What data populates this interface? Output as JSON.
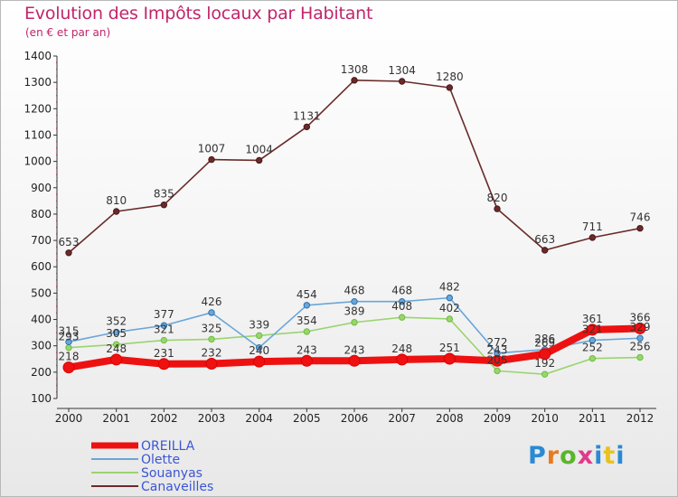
{
  "header": {
    "title": "Evolution des Impôts locaux par Habitant",
    "subtitle": "(en € et par an)"
  },
  "logo": {
    "text": "Proxiti",
    "colors": [
      "#2a8ad4",
      "#e87a1e",
      "#5ab52a",
      "#e03a8a",
      "#2a8ad4",
      "#e8c21e",
      "#2a8ad4"
    ]
  },
  "chart_data": {
    "type": "line",
    "title": "Evolution des Impôts locaux par Habitant",
    "subtitle": "(en € et par an)",
    "x": [
      "2000",
      "2001",
      "2002",
      "2003",
      "2004",
      "2005",
      "2006",
      "2007",
      "2008",
      "2009",
      "2010",
      "2011",
      "2012"
    ],
    "ylim": [
      100,
      1400
    ],
    "yticks": [
      100,
      200,
      300,
      400,
      500,
      600,
      700,
      800,
      900,
      1000,
      1100,
      1200,
      1300,
      1400
    ],
    "grid": false,
    "legend_position": "bottom-left",
    "series": [
      {
        "name": "OREILLA",
        "color": "#ee1111",
        "values": [
          218,
          248,
          231,
          232,
          240,
          243,
          243,
          248,
          251,
          243,
          269,
          361,
          366
        ],
        "labels": [
          "218",
          "248",
          "231",
          "232",
          "240",
          "243",
          "243",
          "248",
          "251",
          "243",
          "269",
          "361",
          "366"
        ]
      },
      {
        "name": "Olette",
        "color": "#6aa6d8",
        "values": [
          315,
          352,
          377,
          426,
          293,
          454,
          468,
          468,
          482,
          272,
          286,
          321,
          329
        ],
        "labels": [
          "315",
          "352",
          "377",
          "426",
          "",
          "454",
          "468",
          "468",
          "482",
          "272",
          "286",
          "321",
          "329"
        ]
      },
      {
        "name": "Souanyas",
        "color": "#9ad470",
        "values": [
          293,
          305,
          321,
          325,
          339,
          354,
          389,
          408,
          402,
          205,
          192,
          252,
          256
        ],
        "labels": [
          "293",
          "305",
          "321",
          "325",
          "339",
          "354",
          "389",
          "408",
          "402",
          "205",
          "192",
          "252",
          "256"
        ]
      },
      {
        "name": "Canaveilles",
        "color": "#6b2a2a",
        "values": [
          653,
          810,
          835,
          1007,
          1004,
          1131,
          1308,
          1304,
          1280,
          820,
          663,
          711,
          746
        ],
        "labels": [
          "653",
          "810",
          "835",
          "1007",
          "1004",
          "1131",
          "1308",
          "1304",
          "1280",
          "820",
          "663",
          "711",
          "746"
        ]
      }
    ]
  }
}
